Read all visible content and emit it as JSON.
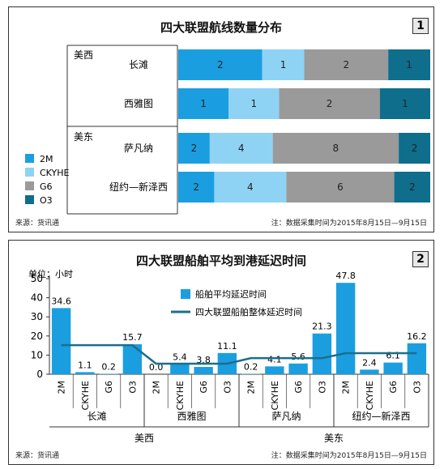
{
  "colors": {
    "2M": "#1b9ee0",
    "CKYHE": "#8fd3f4",
    "G6": "#9a9a9a",
    "O3": "#0e6e8c",
    "line": "#1a6f8c"
  },
  "panel1": {
    "title": "四大联盟航线数量分布",
    "number": "1",
    "source": "来源：货讯通",
    "note": "注：数据采集时间为2015年8月15日—9月15日"
  },
  "panel2": {
    "title": "四大联盟船舶平均到港延迟时间",
    "number": "2",
    "unit": "单位：小时",
    "source": "来源：货讯通",
    "note": "注：数据采集时间为2015年8月15日—9月15日",
    "legend_bar": "船舶平均延迟时间",
    "legend_line": "四大联盟船舶整体延迟时间"
  },
  "chart_data": [
    {
      "type": "bar",
      "stacked": true,
      "orientation": "horizontal",
      "title": "四大联盟航线数量分布",
      "groups": [
        {
          "name": "美西",
          "categories": [
            "长滩",
            "西雅图"
          ]
        },
        {
          "name": "美东",
          "categories": [
            "萨凡纳",
            "纽约—新泽西"
          ]
        }
      ],
      "categories": [
        "长滩",
        "西雅图",
        "萨凡纳",
        "纽约—新泽西"
      ],
      "series": [
        {
          "name": "2M",
          "values": [
            2,
            1,
            2,
            2
          ]
        },
        {
          "name": "CKYHE",
          "values": [
            1,
            1,
            4,
            4
          ]
        },
        {
          "name": "G6",
          "values": [
            2,
            2,
            8,
            6
          ]
        },
        {
          "name": "O3",
          "values": [
            1,
            1,
            2,
            2
          ]
        }
      ],
      "legend": [
        "2M",
        "CKYHE",
        "G6",
        "O3"
      ],
      "legend_position": "bottom-left"
    },
    {
      "type": "bar",
      "title": "四大联盟船舶平均到港延迟时间",
      "ylabel": "单位：小时",
      "ylim": [
        0,
        50
      ],
      "yticks": [
        0,
        10,
        20,
        30,
        40,
        50
      ],
      "grid": false,
      "regions": [
        {
          "name": "美西",
          "ports": [
            "长滩",
            "西雅图"
          ]
        },
        {
          "name": "美东",
          "ports": [
            "萨凡纳",
            "纽约—新泽西"
          ]
        }
      ],
      "ports": [
        {
          "name": "长滩",
          "bars": [
            {
              "alliance": "2M",
              "value": 34.6
            },
            {
              "alliance": "CKYHE",
              "value": 1.1
            },
            {
              "alliance": "G6",
              "value": 0.2
            },
            {
              "alliance": "O3",
              "value": 15.7
            }
          ],
          "overall": 15.2
        },
        {
          "name": "西雅图",
          "bars": [
            {
              "alliance": "2M",
              "value": 0.0
            },
            {
              "alliance": "CKYHE",
              "value": 5.4
            },
            {
              "alliance": "G6",
              "value": 3.8
            },
            {
              "alliance": "O3",
              "value": 11.1
            }
          ],
          "overall": 5.5
        },
        {
          "name": "萨凡纳",
          "bars": [
            {
              "alliance": "2M",
              "value": 0.2
            },
            {
              "alliance": "CKYHE",
              "value": 4.1
            },
            {
              "alliance": "G6",
              "value": 5.6
            },
            {
              "alliance": "O3",
              "value": 21.3
            }
          ],
          "overall": 8.4
        },
        {
          "name": "纽约—新泽西",
          "bars": [
            {
              "alliance": "2M",
              "value": 47.8
            },
            {
              "alliance": "CKYHE",
              "value": 2.4
            },
            {
              "alliance": "G6",
              "value": 6.1
            },
            {
              "alliance": "O3",
              "value": 16.2
            }
          ],
          "overall": 11.0
        }
      ],
      "series": [
        {
          "name": "船舶平均延迟时间",
          "kind": "bar"
        },
        {
          "name": "四大联盟船舶整体延迟时间",
          "kind": "line"
        }
      ],
      "legend_position": "top-center"
    }
  ]
}
